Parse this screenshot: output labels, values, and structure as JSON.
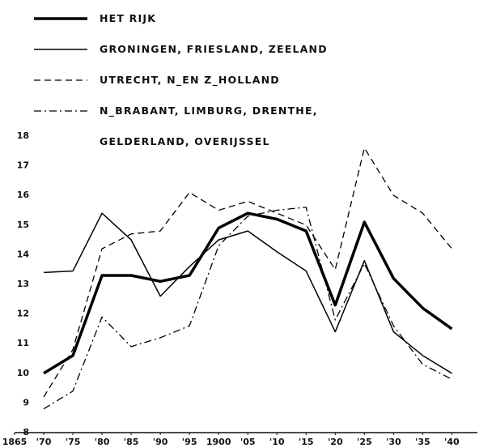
{
  "chart_data": {
    "type": "line",
    "x": [
      1870,
      1875,
      1880,
      1885,
      1890,
      1895,
      1900,
      1905,
      1910,
      1915,
      1920,
      1925,
      1930,
      1935,
      1940
    ],
    "series": [
      {
        "name": "HET RIJK",
        "color": "#000000",
        "linewidth": 3.5,
        "linestyle": "solid",
        "values": [
          10.0,
          10.6,
          13.3,
          13.3,
          13.1,
          13.3,
          14.9,
          15.4,
          15.2,
          14.8,
          12.3,
          15.1,
          13.2,
          12.2,
          11.5
        ]
      },
      {
        "name": "GRONINGEN, FRIESLAND, ZEELAND",
        "color": "#000000",
        "linewidth": 1.5,
        "linestyle": "solid",
        "values": [
          13.4,
          13.45,
          15.4,
          14.5,
          12.6,
          13.6,
          14.5,
          14.8,
          14.1,
          13.45,
          11.4,
          13.8,
          11.4,
          10.6,
          10.0
        ]
      },
      {
        "name": "UTRECHT, N_EN Z_HOLLAND",
        "color": "#000000",
        "linewidth": 1.3,
        "linestyle": "dashed",
        "values": [
          9.2,
          10.8,
          14.2,
          14.7,
          14.8,
          16.1,
          15.5,
          15.8,
          15.4,
          15.0,
          13.5,
          17.6,
          16.0,
          15.4,
          14.2
        ]
      },
      {
        "name": "N_BRABANT, LIMBURG, DRENTHE, GELDERLAND, OVERIJSSEL",
        "color": "#000000",
        "linewidth": 1.3,
        "linestyle": "dashdot",
        "values": [
          8.8,
          9.4,
          11.9,
          10.9,
          11.2,
          11.6,
          14.3,
          15.3,
          15.5,
          15.6,
          11.8,
          13.7,
          11.6,
          10.3,
          9.8
        ]
      }
    ],
    "xlim": [
      1865,
      1943
    ],
    "xticks": [
      1865,
      {
        "value": 1870,
        "label": "'70"
      },
      {
        "value": 1875,
        "label": "'75"
      },
      {
        "value": 1880,
        "label": "'80"
      },
      {
        "value": 1885,
        "label": "'85"
      },
      {
        "value": 1890,
        "label": "'90"
      },
      {
        "value": 1895,
        "label": "'95"
      },
      1900,
      {
        "value": 1905,
        "label": "'05"
      },
      {
        "value": 1910,
        "label": "'10"
      },
      {
        "value": 1915,
        "label": "'15"
      },
      {
        "value": 1920,
        "label": "'20"
      },
      {
        "value": 1925,
        "label": "'25"
      },
      {
        "value": 1930,
        "label": "'30"
      },
      {
        "value": 1935,
        "label": "'35"
      },
      {
        "value": 1940,
        "label": "'40"
      }
    ],
    "ylim": [
      8,
      18
    ],
    "yticks": [
      8,
      9,
      10,
      11,
      12,
      13,
      14,
      15,
      16,
      17,
      18
    ]
  }
}
